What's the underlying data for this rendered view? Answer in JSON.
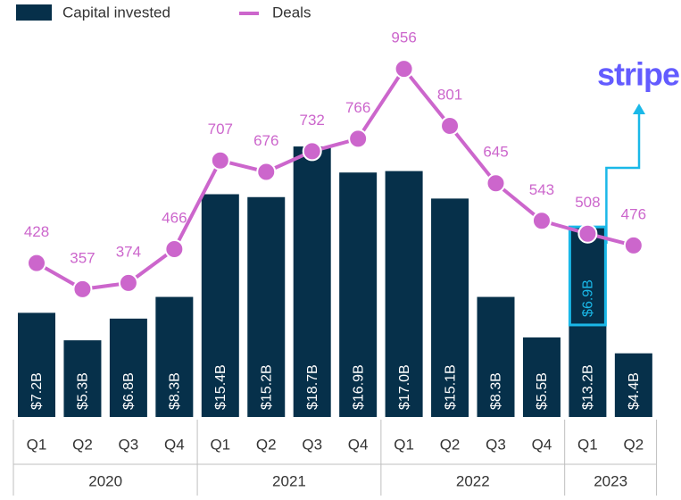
{
  "chart_data": {
    "type": "bar-line",
    "categories": [
      "Q1",
      "Q2",
      "Q3",
      "Q4",
      "Q1",
      "Q2",
      "Q3",
      "Q4",
      "Q1",
      "Q2",
      "Q3",
      "Q4",
      "Q1",
      "Q2"
    ],
    "category_groups": [
      {
        "label": "2020",
        "size": 4
      },
      {
        "label": "2021",
        "size": 4
      },
      {
        "label": "2022",
        "size": 4
      },
      {
        "label": "2023",
        "size": 2
      }
    ],
    "series": [
      {
        "name": "Capital invested",
        "color": "#06304a",
        "values": [
          7.2,
          5.3,
          6.8,
          8.3,
          15.4,
          15.2,
          18.7,
          16.9,
          17.0,
          15.1,
          8.3,
          5.5,
          13.2,
          4.4
        ],
        "value_labels": [
          "$7.2B",
          "$5.3B",
          "$6.8B",
          "$8.3B",
          "$15.4B",
          "$15.2B",
          "$18.7B",
          "$16.9B",
          "$17.0B",
          "$15.1B",
          "$8.3B",
          "$5.5B",
          "$13.2B",
          "$4.4B"
        ]
      },
      {
        "name": "Deals",
        "color": "#cc66cc",
        "axis": "y2",
        "values": [
          428,
          357,
          374,
          466,
          707,
          676,
          732,
          766,
          956,
          801,
          645,
          543,
          508,
          476
        ]
      }
    ],
    "highlight": {
      "label": "stripe",
      "category": 12,
      "value": 6.9,
      "value_label": "$6.9B",
      "color": "#1ab8e8",
      "label_color": "#635bff"
    }
  }
}
